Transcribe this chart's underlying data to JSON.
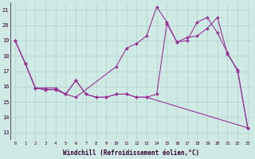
{
  "background_color": "#cfe9e5",
  "grid_color": "#b0d4cc",
  "line_color": "#993399",
  "marker_color": "#993399",
  "xlabel": "Windchill (Refroidissement éolien,°C)",
  "xlim": [
    -0.5,
    23.5
  ],
  "ylim": [
    12.5,
    21.5
  ],
  "yticks": [
    13,
    14,
    15,
    16,
    17,
    18,
    19,
    20,
    21
  ],
  "xticks": [
    0,
    1,
    2,
    3,
    4,
    5,
    6,
    7,
    8,
    9,
    10,
    11,
    12,
    13,
    14,
    15,
    16,
    17,
    18,
    19,
    20,
    21,
    22,
    23
  ],
  "line1_x": [
    0,
    1,
    2,
    3,
    4,
    5,
    6,
    10,
    11,
    12,
    13,
    14,
    15,
    16,
    17,
    18,
    19,
    20,
    21,
    22,
    23
  ],
  "line1_y": [
    19.0,
    17.5,
    15.9,
    15.9,
    15.9,
    15.5,
    15.3,
    17.3,
    18.5,
    18.8,
    19.3,
    21.2,
    20.2,
    18.9,
    19.2,
    19.3,
    19.8,
    20.5,
    18.1,
    17.1,
    13.3
  ],
  "line2_x": [
    0,
    1,
    2,
    3,
    4,
    5,
    6,
    7,
    8,
    9,
    10,
    11,
    12,
    13,
    14,
    15,
    16,
    17,
    18,
    19,
    20,
    21,
    22,
    23
  ],
  "line2_y": [
    19.0,
    17.5,
    15.9,
    15.8,
    15.8,
    15.5,
    16.4,
    15.5,
    15.3,
    15.3,
    15.5,
    15.5,
    15.3,
    15.3,
    15.5,
    20.1,
    18.9,
    19.0,
    20.2,
    20.5,
    19.5,
    18.2,
    17.0,
    13.3
  ],
  "line3_x": [
    0,
    1,
    2,
    3,
    4,
    5,
    6,
    7,
    8,
    9,
    10,
    11,
    12,
    13,
    23
  ],
  "line3_y": [
    19.0,
    17.5,
    15.9,
    15.8,
    15.8,
    15.5,
    16.4,
    15.5,
    15.3,
    15.3,
    15.5,
    15.5,
    15.3,
    15.3,
    13.3
  ]
}
